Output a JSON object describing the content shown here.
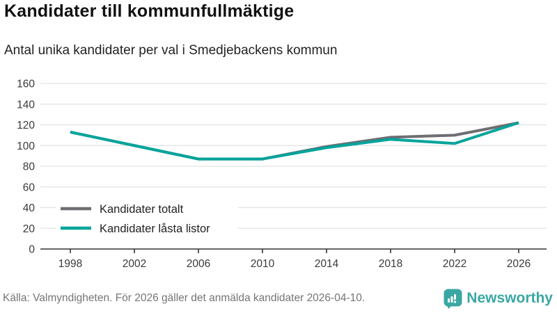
{
  "header": {
    "title": "Kandidater till kommunfullmäktige",
    "subtitle": "Antal unika kandidater per val i Smedjebackens kommun"
  },
  "chart_data": {
    "type": "line",
    "x": [
      1998,
      2002,
      2006,
      2010,
      2014,
      2018,
      2022,
      2026
    ],
    "series": [
      {
        "name": "Kandidater totalt",
        "color": "#6e6e73",
        "values": [
          113,
          100,
          87,
          87,
          99,
          108,
          110,
          122
        ]
      },
      {
        "name": "Kandidater låsta listor",
        "color": "#00a49b",
        "values": [
          113,
          100,
          87,
          87,
          98,
          106,
          102,
          122
        ]
      }
    ],
    "title": "Kandidater till kommunfullmäktige",
    "xlabel": "",
    "ylabel": "",
    "ylim": [
      0,
      160
    ],
    "yticks": [
      0,
      20,
      40,
      60,
      80,
      100,
      120,
      140,
      160
    ],
    "grid": true,
    "legend_position": "inside-left"
  },
  "footer": {
    "source": "Källa: Valmyndigheten. För 2026 gäller det anmälda kandidater 2026-04-10.",
    "brand": "Newsworthy"
  },
  "icons": {
    "logo": "newsworthy-speech-bubble-bar-chart-icon"
  },
  "colors": {
    "accent_teal": "#00a49b",
    "series_gray": "#6e6e73",
    "logo_teal": "#3aa7a3",
    "grid": "#e2e2e2",
    "axis": "#333333",
    "footer_text": "#757575"
  }
}
